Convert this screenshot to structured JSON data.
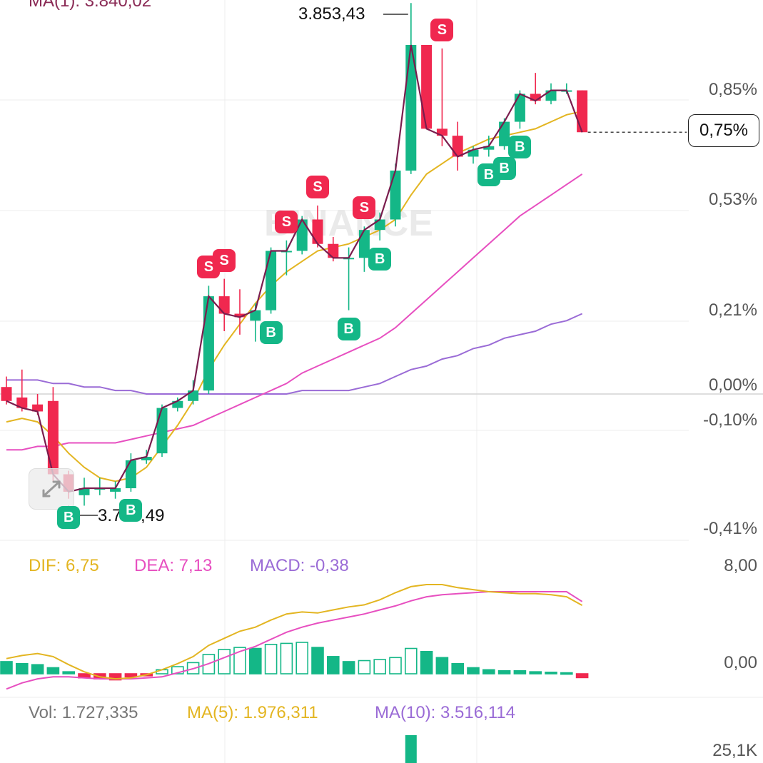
{
  "header": {
    "ma_top": "MA(1): 3.840,02"
  },
  "axis": {
    "price_ticks": [
      {
        "value": 0.85,
        "label": "0,85%"
      },
      {
        "value": 0.53,
        "label": "0,53%"
      },
      {
        "value": 0.21,
        "label": "0,21%"
      },
      {
        "value": 0.0,
        "label": "0,00%"
      },
      {
        "value": -0.1,
        "label": "-0,10%"
      },
      {
        "value": -0.41,
        "label": "-0,41%"
      }
    ],
    "macd_ticks": [
      {
        "value": 8.0,
        "label": "8,00"
      },
      {
        "value": 0.0,
        "label": "0,00"
      }
    ],
    "vol_ticks": [
      {
        "label": "25,1K"
      }
    ]
  },
  "annotations": {
    "high_label": "3.853,43",
    "low_label": "3.798,49",
    "current_tag": "0,75%",
    "watermark": "BINANCE"
  },
  "macd_legend": {
    "dif": "DIF: 6,75",
    "dea": "DEA: 7,13",
    "macd": "MACD: -0,38"
  },
  "vol_legend": {
    "vol": "Vol: 1.727,335",
    "ma5": "MA(5): 1.976,311",
    "ma10": "MA(10): 3.516,114"
  },
  "colors": {
    "up": "#14b787",
    "down": "#f0284f",
    "ma1": "#7a1d4e",
    "ma_yellow": "#e3b521",
    "ma_pink": "#e74fc0",
    "ma_purple": "#9a6bd6",
    "grid": "#ececec"
  },
  "chart_data": {
    "type": "candlestick",
    "y_unit": "percent change",
    "ylim": [
      -0.45,
      1.05
    ],
    "candles": [
      {
        "o": 0.02,
        "h": 0.05,
        "l": -0.03,
        "c": -0.02
      },
      {
        "o": -0.01,
        "h": 0.07,
        "l": -0.05,
        "c": -0.04
      },
      {
        "o": -0.03,
        "h": 0.0,
        "l": -0.06,
        "c": -0.05
      },
      {
        "o": -0.02,
        "h": 0.02,
        "l": -0.25,
        "c": -0.23
      },
      {
        "o": -0.23,
        "h": -0.22,
        "l": -0.3,
        "c": -0.28
      },
      {
        "o": -0.29,
        "h": -0.24,
        "l": -0.32,
        "c": -0.27
      },
      {
        "o": -0.27,
        "h": -0.24,
        "l": -0.29,
        "c": -0.27
      },
      {
        "o": -0.28,
        "h": -0.25,
        "l": -0.3,
        "c": -0.27
      },
      {
        "o": -0.27,
        "h": -0.17,
        "l": -0.28,
        "c": -0.19
      },
      {
        "o": -0.19,
        "h": -0.16,
        "l": -0.2,
        "c": -0.18
      },
      {
        "o": -0.17,
        "h": -0.03,
        "l": -0.18,
        "c": -0.04
      },
      {
        "o": -0.04,
        "h": -0.01,
        "l": -0.05,
        "c": -0.02
      },
      {
        "o": -0.02,
        "h": 0.04,
        "l": -0.03,
        "c": 0.01
      },
      {
        "o": 0.01,
        "h": 0.31,
        "l": 0.0,
        "c": 0.28
      },
      {
        "o": 0.28,
        "h": 0.33,
        "l": 0.18,
        "c": 0.23
      },
      {
        "o": 0.23,
        "h": 0.3,
        "l": 0.17,
        "c": 0.22
      },
      {
        "o": 0.21,
        "h": 0.26,
        "l": 0.15,
        "c": 0.24
      },
      {
        "o": 0.24,
        "h": 0.42,
        "l": 0.23,
        "c": 0.41
      },
      {
        "o": 0.41,
        "h": 0.44,
        "l": 0.34,
        "c": 0.41
      },
      {
        "o": 0.41,
        "h": 0.51,
        "l": 0.4,
        "c": 0.5
      },
      {
        "o": 0.5,
        "h": 0.54,
        "l": 0.42,
        "c": 0.43
      },
      {
        "o": 0.43,
        "h": 0.45,
        "l": 0.38,
        "c": 0.39
      },
      {
        "o": 0.39,
        "h": 0.42,
        "l": 0.24,
        "c": 0.39
      },
      {
        "o": 0.39,
        "h": 0.48,
        "l": 0.35,
        "c": 0.47
      },
      {
        "o": 0.47,
        "h": 0.52,
        "l": 0.44,
        "c": 0.5
      },
      {
        "o": 0.5,
        "h": 0.66,
        "l": 0.48,
        "c": 0.64
      },
      {
        "o": 0.64,
        "h": 1.12,
        "l": 0.63,
        "c": 1.0
      },
      {
        "o": 1.0,
        "h": 1.0,
        "l": 0.76,
        "c": 0.76
      },
      {
        "o": 0.76,
        "h": 0.99,
        "l": 0.71,
        "c": 0.74
      },
      {
        "o": 0.74,
        "h": 0.78,
        "l": 0.64,
        "c": 0.68
      },
      {
        "o": 0.68,
        "h": 0.71,
        "l": 0.66,
        "c": 0.7
      },
      {
        "o": 0.7,
        "h": 0.74,
        "l": 0.68,
        "c": 0.71
      },
      {
        "o": 0.71,
        "h": 0.79,
        "l": 0.7,
        "c": 0.78
      },
      {
        "o": 0.78,
        "h": 0.87,
        "l": 0.76,
        "c": 0.86
      },
      {
        "o": 0.86,
        "h": 0.92,
        "l": 0.83,
        "c": 0.84
      },
      {
        "o": 0.84,
        "h": 0.89,
        "l": 0.83,
        "c": 0.87
      },
      {
        "o": 0.87,
        "h": 0.89,
        "l": 0.86,
        "c": 0.87
      },
      {
        "o": 0.87,
        "h": 0.87,
        "l": 0.75,
        "c": 0.75
      }
    ],
    "ma_yellow": [
      -0.08,
      -0.07,
      -0.08,
      -0.12,
      -0.17,
      -0.21,
      -0.24,
      -0.25,
      -0.24,
      -0.21,
      -0.15,
      -0.09,
      -0.02,
      0.07,
      0.14,
      0.2,
      0.26,
      0.31,
      0.35,
      0.38,
      0.41,
      0.42,
      0.43,
      0.45,
      0.47,
      0.5,
      0.57,
      0.63,
      0.66,
      0.69,
      0.71,
      0.73,
      0.74,
      0.75,
      0.76,
      0.78,
      0.8,
      0.81
    ],
    "ma_pink": [
      -0.16,
      -0.16,
      -0.15,
      -0.15,
      -0.14,
      -0.14,
      -0.14,
      -0.14,
      -0.13,
      -0.12,
      -0.11,
      -0.1,
      -0.09,
      -0.07,
      -0.05,
      -0.03,
      -0.01,
      0.01,
      0.03,
      0.06,
      0.08,
      0.1,
      0.12,
      0.14,
      0.16,
      0.19,
      0.23,
      0.27,
      0.31,
      0.35,
      0.39,
      0.43,
      0.47,
      0.51,
      0.54,
      0.57,
      0.6,
      0.63
    ],
    "ma_purple": [
      0.04,
      0.04,
      0.04,
      0.03,
      0.03,
      0.02,
      0.02,
      0.01,
      0.01,
      0.0,
      0.0,
      0.0,
      0.0,
      0.0,
      0.0,
      0.0,
      0.0,
      0.0,
      0.0,
      0.01,
      0.01,
      0.01,
      0.01,
      0.02,
      0.03,
      0.05,
      0.07,
      0.08,
      0.1,
      0.11,
      0.13,
      0.14,
      0.16,
      0.17,
      0.18,
      0.2,
      0.21,
      0.23
    ],
    "signals": [
      {
        "index": 4,
        "type": "B"
      },
      {
        "index": 8,
        "type": "B"
      },
      {
        "index": 13,
        "type": "S"
      },
      {
        "index": 14,
        "type": "S"
      },
      {
        "index": 17,
        "type": "B"
      },
      {
        "index": 18,
        "type": "S"
      },
      {
        "index": 20,
        "type": "S"
      },
      {
        "index": 22,
        "type": "B"
      },
      {
        "index": 23,
        "type": "S"
      },
      {
        "index": 24,
        "type": "B"
      },
      {
        "index": 28,
        "type": "S"
      },
      {
        "index": 31,
        "type": "B"
      },
      {
        "index": 32,
        "type": "B"
      },
      {
        "index": 33,
        "type": "B"
      }
    ],
    "macd": {
      "ylim": [
        -3.5,
        11
      ],
      "hist": [
        1.2,
        1.0,
        0.9,
        0.6,
        0.2,
        -0.4,
        -0.5,
        -0.6,
        -0.3,
        -0.2,
        0.4,
        0.7,
        1.1,
        1.9,
        2.4,
        2.6,
        2.5,
        2.9,
        3.0,
        3.1,
        2.6,
        1.7,
        1.2,
        1.3,
        1.4,
        1.6,
        2.5,
        2.2,
        1.6,
        1.0,
        0.6,
        0.4,
        0.3,
        0.3,
        0.2,
        0.15,
        0.1,
        -0.38
      ],
      "dif": [
        1.5,
        1.8,
        2.0,
        1.7,
        0.9,
        0.2,
        -0.3,
        -0.5,
        -0.4,
        -0.1,
        0.4,
        1.0,
        1.7,
        2.8,
        3.5,
        4.2,
        4.6,
        5.3,
        5.9,
        6.1,
        6.0,
        6.3,
        6.6,
        6.8,
        7.3,
        8.0,
        8.6,
        8.8,
        8.8,
        8.5,
        8.3,
        8.1,
        8.0,
        7.9,
        7.9,
        7.8,
        7.6,
        6.75
      ],
      "dea": [
        -1.5,
        -0.9,
        -0.5,
        -0.3,
        -0.3,
        -0.4,
        -0.5,
        -0.5,
        -0.5,
        -0.4,
        -0.3,
        0.1,
        0.5,
        1.0,
        1.6,
        2.2,
        2.7,
        3.4,
        4.1,
        4.6,
        5.0,
        5.3,
        5.6,
        5.9,
        6.3,
        6.7,
        7.2,
        7.6,
        7.8,
        7.9,
        8.0,
        8.1,
        8.1,
        8.1,
        8.1,
        8.1,
        8.1,
        7.13
      ]
    },
    "volume": {
      "last_bar_index": 26
    }
  }
}
